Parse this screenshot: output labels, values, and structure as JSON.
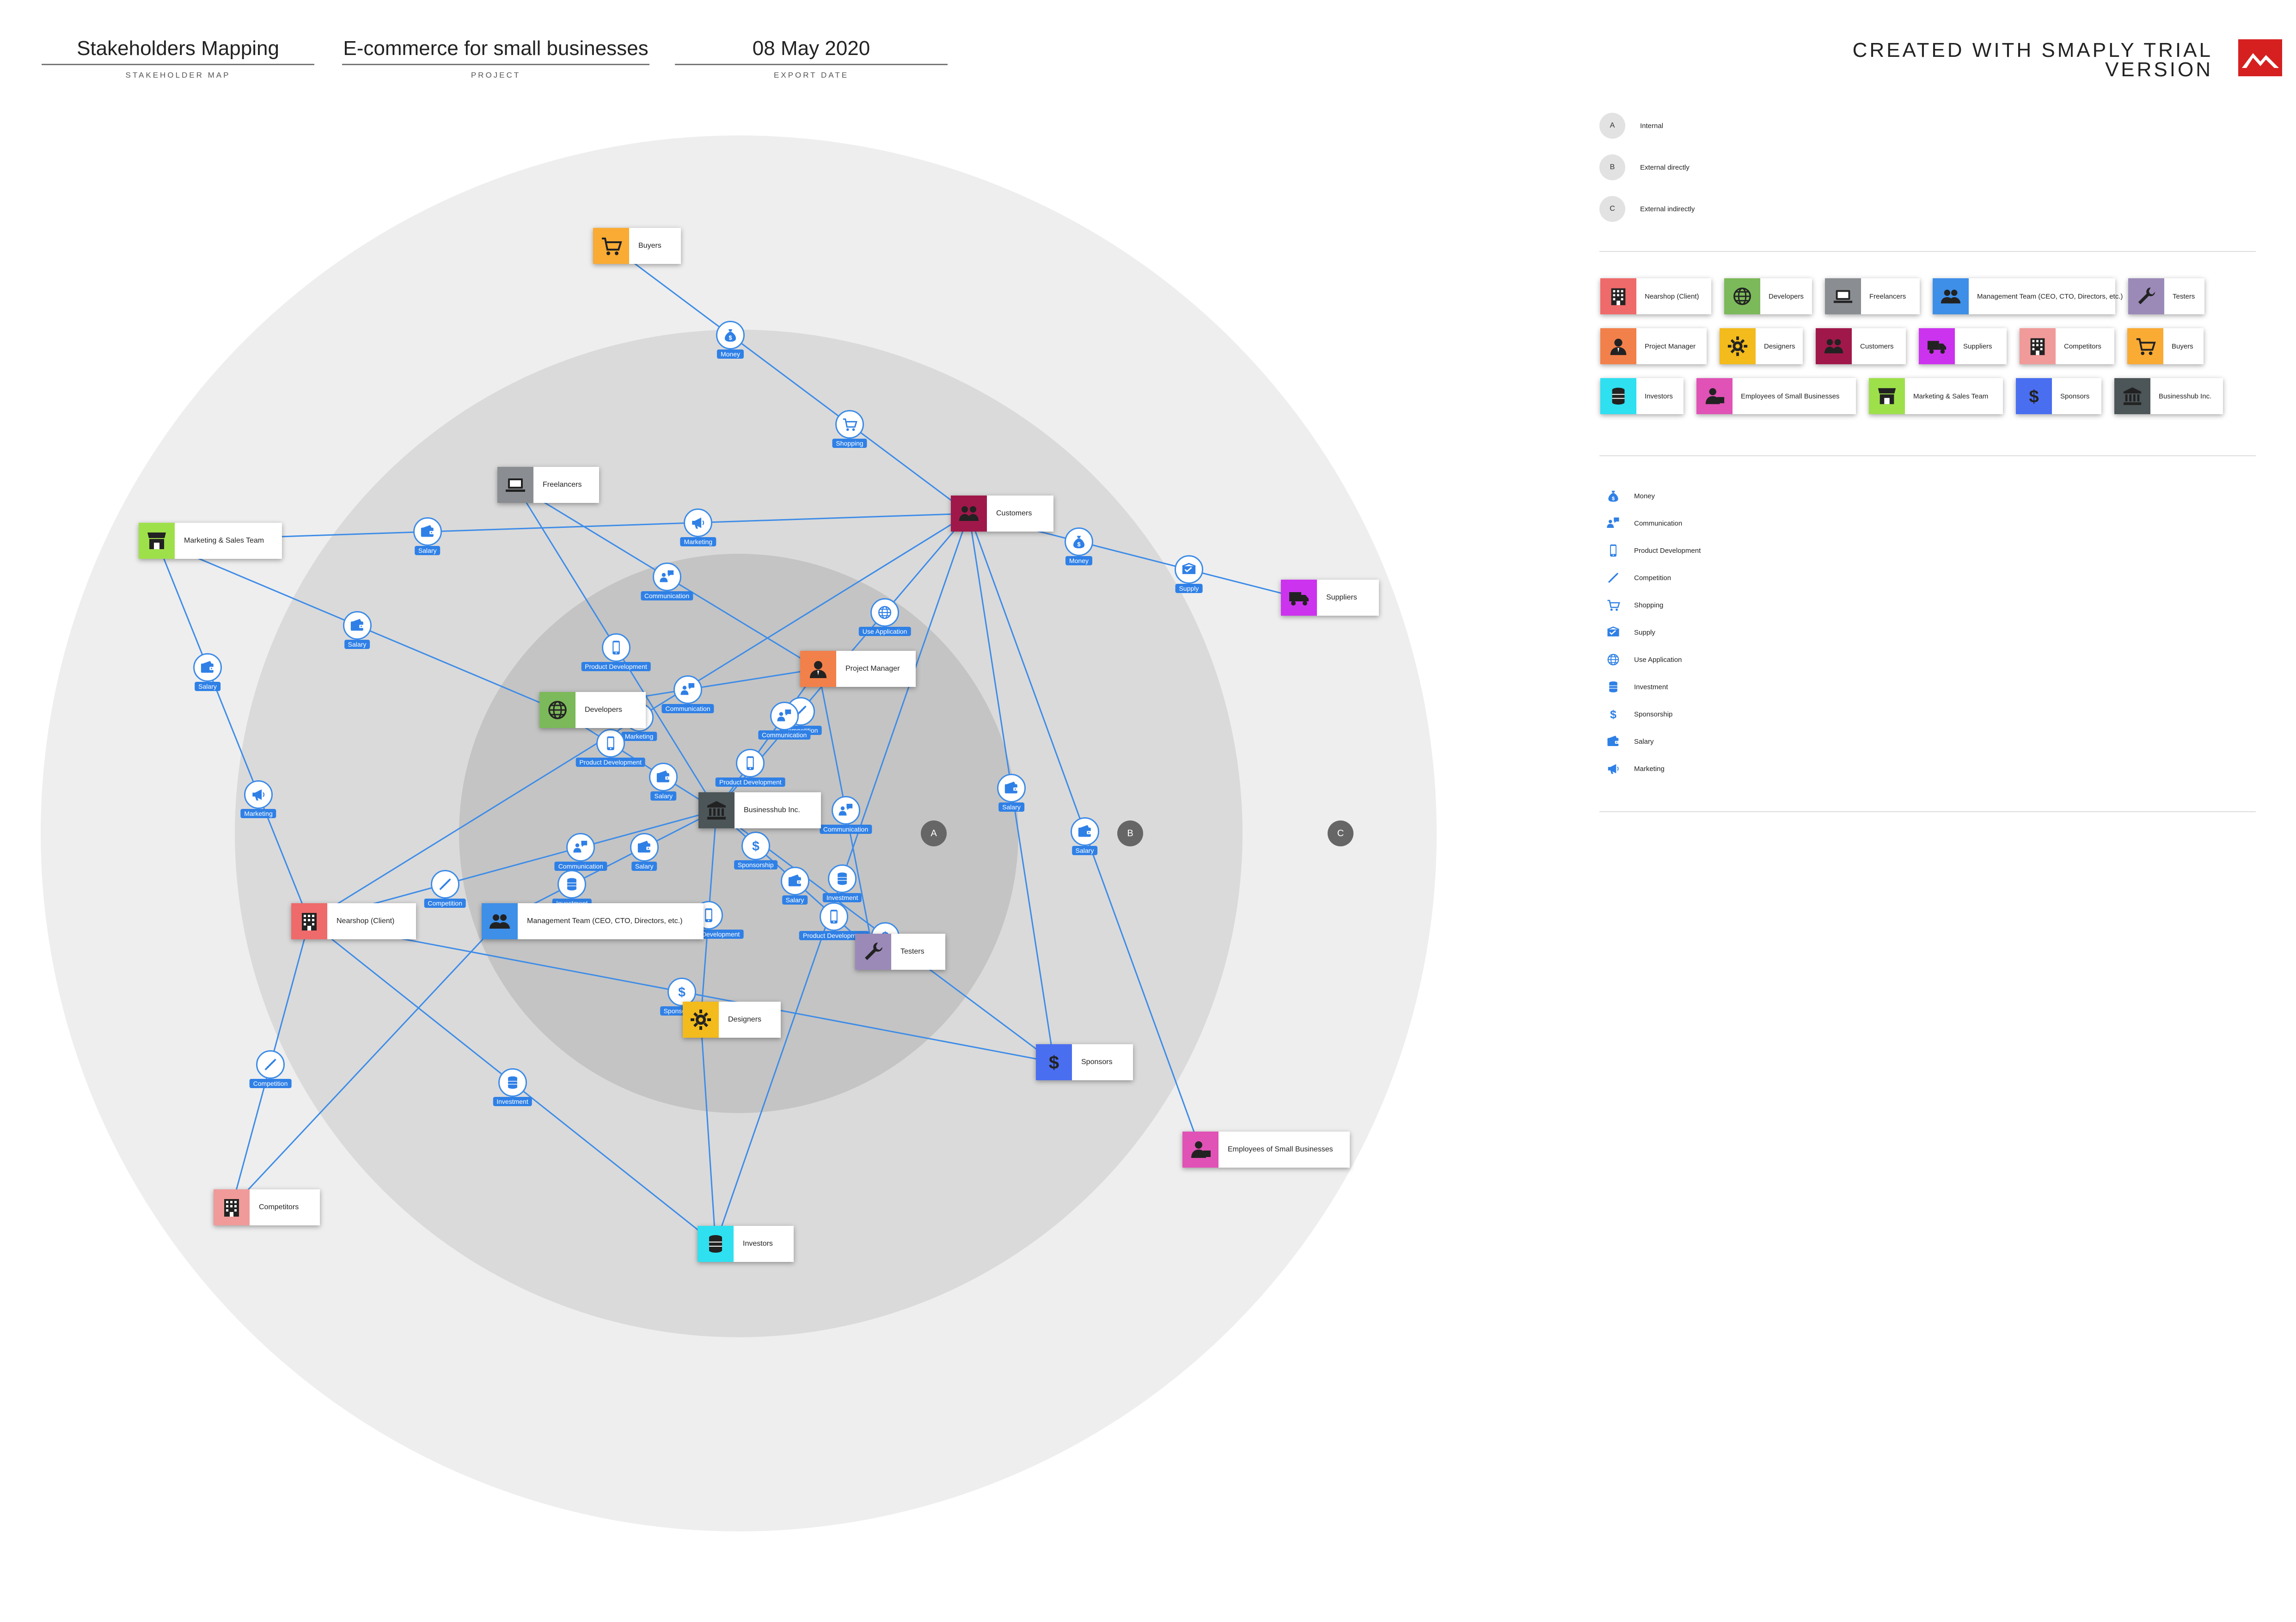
{
  "header": {
    "fields": [
      {
        "value": "Stakeholders Mapping",
        "label": "STAKEHOLDER MAP"
      },
      {
        "value": "E-commerce for small businesses",
        "label": "PROJECT"
      },
      {
        "value": "08 May 2020",
        "label": "EXPORT DATE"
      }
    ],
    "brand": "CREATED WITH SMAPLY TRIAL VERSION"
  },
  "rings": [
    {
      "letter": "A",
      "label": "Internal",
      "color": "#c4c4c4"
    },
    {
      "letter": "B",
      "label": "External directly",
      "color": "#dadada"
    },
    {
      "letter": "C",
      "label": "External indirectly",
      "color": "#eeeeee"
    }
  ],
  "stakeholders": [
    {
      "id": "buyers",
      "name": "Buyers",
      "icon": "cart-icon",
      "color": "#f9ab33"
    },
    {
      "id": "freelancers",
      "name": "Freelancers",
      "icon": "laptop-icon",
      "color": "#8a8d91"
    },
    {
      "id": "customers",
      "name": "Customers",
      "icon": "customers-icon",
      "color": "#a0184a"
    },
    {
      "id": "marketing",
      "name": "Marketing & Sales Team",
      "icon": "store-icon",
      "color": "#9ee04a"
    },
    {
      "id": "suppliers",
      "name": "Suppliers",
      "icon": "truck-icon",
      "color": "#cc33ee"
    },
    {
      "id": "pm",
      "name": "Project Manager",
      "icon": "manager-icon",
      "color": "#f2804a"
    },
    {
      "id": "developers",
      "name": "Developers",
      "icon": "globe-icon",
      "color": "#7cb95a"
    },
    {
      "id": "businesshub",
      "name": "Businesshub Inc.",
      "icon": "bank-icon",
      "color": "#4c5558"
    },
    {
      "id": "nearshop",
      "name": "Nearshop (Client)",
      "icon": "building-icon",
      "color": "#ef6a6a"
    },
    {
      "id": "mgmt",
      "name": "Management Team (CEO, CTO, Directors, etc.)",
      "icon": "team-icon",
      "color": "#3d8fe8"
    },
    {
      "id": "testers",
      "name": "Testers",
      "icon": "wrench-icon",
      "color": "#9b8ab8"
    },
    {
      "id": "designers",
      "name": "Designers",
      "icon": "gear-icon",
      "color": "#f3bb1c"
    },
    {
      "id": "sponsors",
      "name": "Sponsors",
      "icon": "dollar-icon",
      "color": "#4a6ef0"
    },
    {
      "id": "employees",
      "name": "Employees of Small Businesses",
      "icon": "employees-icon",
      "color": "#e052b5"
    },
    {
      "id": "competitors",
      "name": "Competitors",
      "icon": "building-icon",
      "color": "#f19a9a"
    },
    {
      "id": "investors",
      "name": "Investors",
      "icon": "coins-icon",
      "color": "#2ee0f0"
    }
  ],
  "relation_types": [
    {
      "name": "Money",
      "icon": "money-bag-icon"
    },
    {
      "name": "Communication",
      "icon": "communication-icon"
    },
    {
      "name": "Product Development",
      "icon": "phone-icon"
    },
    {
      "name": "Competition",
      "icon": "competition-icon"
    },
    {
      "name": "Shopping",
      "icon": "cart-icon"
    },
    {
      "name": "Supply",
      "icon": "supply-icon"
    },
    {
      "name": "Use Application",
      "icon": "globe-icon"
    },
    {
      "name": "Investment",
      "icon": "coins-icon"
    },
    {
      "name": "Sponsorship",
      "icon": "dollar-icon"
    },
    {
      "name": "Salary",
      "icon": "wallet-icon"
    },
    {
      "name": "Marketing",
      "icon": "megaphone-icon"
    }
  ],
  "relationships": [
    {
      "from": "buyers",
      "to": "customers",
      "via": [
        "Money",
        "Shopping"
      ]
    },
    {
      "from": "customers",
      "to": "suppliers",
      "via": [
        "Money",
        "Supply"
      ]
    },
    {
      "from": "marketing",
      "to": "customers",
      "via": [
        "Salary",
        "Marketing"
      ]
    },
    {
      "from": "marketing",
      "to": "developers",
      "via": [
        "Salary"
      ]
    },
    {
      "from": "marketing",
      "to": "nearshop",
      "via": [
        "Salary",
        "Marketing"
      ]
    },
    {
      "from": "freelancers",
      "to": "pm",
      "via": [
        "Communication"
      ]
    },
    {
      "from": "freelancers",
      "to": "businesshub",
      "via": [
        "Product Development"
      ]
    },
    {
      "from": "customers",
      "to": "businesshub",
      "via": [
        "Use Application",
        "Competition"
      ]
    },
    {
      "from": "customers",
      "to": "investors",
      "via": [
        "Investment"
      ]
    },
    {
      "from": "customers",
      "to": "sponsors",
      "via": [
        "Salary"
      ]
    },
    {
      "from": "customers",
      "to": "employees",
      "via": [
        "Salary"
      ]
    },
    {
      "from": "customers",
      "to": "nearshop",
      "via": [
        "Marketing"
      ]
    },
    {
      "from": "pm",
      "to": "developers",
      "via": [
        "Communication"
      ]
    },
    {
      "from": "pm",
      "to": "businesshub",
      "via": [
        "Communication",
        "Product Development"
      ]
    },
    {
      "from": "pm",
      "to": "testers",
      "via": [
        "Communication"
      ]
    },
    {
      "from": "developers",
      "to": "businesshub",
      "via": [
        "Product Development",
        "Salary"
      ]
    },
    {
      "from": "businesshub",
      "to": "nearshop",
      "via": [
        "Communication",
        "Competition"
      ]
    },
    {
      "from": "businesshub",
      "to": "mgmt",
      "via": [
        "Salary",
        "Investment"
      ]
    },
    {
      "from": "businesshub",
      "to": "testers",
      "via": [
        "Sponsorship",
        "Salary",
        "Product Development"
      ]
    },
    {
      "from": "businesshub",
      "to": "designers",
      "via": [
        "Product Development"
      ]
    },
    {
      "from": "businesshub",
      "to": "sponsors",
      "via": [
        "Sponsorship"
      ]
    },
    {
      "from": "nearshop",
      "to": "competitors",
      "via": [
        "Competition"
      ]
    },
    {
      "from": "nearshop",
      "to": "investors",
      "via": [
        "Investment"
      ]
    },
    {
      "from": "nearshop",
      "to": "sponsors",
      "via": [
        "Sponsorship"
      ]
    },
    {
      "from": "mgmt",
      "to": "competitors",
      "via": []
    },
    {
      "from": "designers",
      "to": "investors",
      "via": []
    }
  ],
  "map_labels": {
    "money": "Money",
    "communication": "Communication",
    "product_development": "Product Development",
    "competition": "Competition",
    "shopping": "Shopping",
    "supply": "Supply",
    "use_application": "Use Application",
    "investment": "Investment",
    "sponsorship": "Sponsorship",
    "salary": "Salary",
    "marketing": "Marketing"
  }
}
